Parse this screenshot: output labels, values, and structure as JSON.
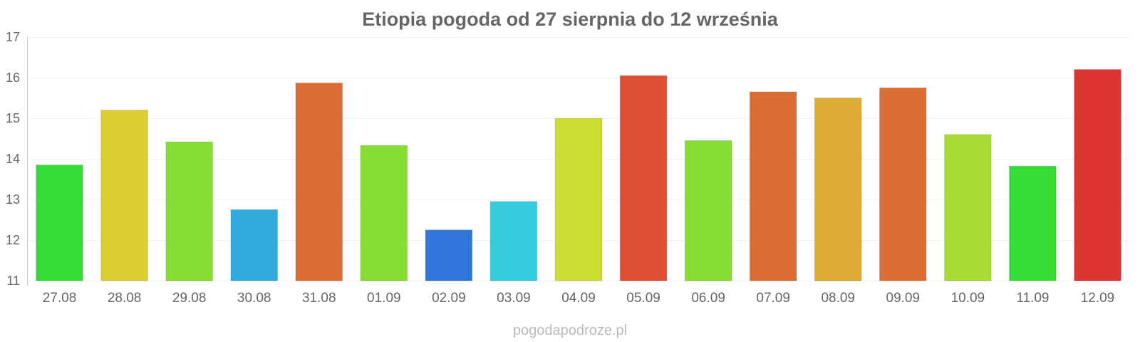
{
  "chart_data": {
    "type": "bar",
    "title": "Etiopia pogoda od 27 sierpnia do 12 września",
    "xlabel": "",
    "ylabel": "",
    "ylim": [
      11,
      17
    ],
    "yticks": [
      11,
      12,
      13,
      14,
      15,
      16,
      17
    ],
    "grid": true,
    "legend": "none",
    "categories": [
      "27.08",
      "28.08",
      "29.08",
      "30.08",
      "31.08",
      "01.09",
      "02.09",
      "03.09",
      "04.09",
      "05.09",
      "06.09",
      "07.09",
      "08.09",
      "09.09",
      "10.09",
      "11.09",
      "12.09"
    ],
    "values": [
      13.85,
      15.2,
      14.42,
      12.75,
      15.87,
      14.33,
      12.25,
      12.95,
      15.0,
      16.05,
      14.45,
      15.65,
      15.5,
      15.75,
      14.6,
      13.82,
      16.2
    ],
    "colors": [
      "#33dd33",
      "#ddcc33",
      "#88dd33",
      "#33aadd",
      "#dd6e33",
      "#88dd33",
      "#3377dd",
      "#33ccdd",
      "#ccdd33",
      "#dd5033",
      "#88dd33",
      "#dd6e33",
      "#ddaa33",
      "#dd6e33",
      "#aadd33",
      "#33dd33",
      "#dd3333"
    ]
  },
  "footer": {
    "credit": "pogodapodroze.pl"
  }
}
